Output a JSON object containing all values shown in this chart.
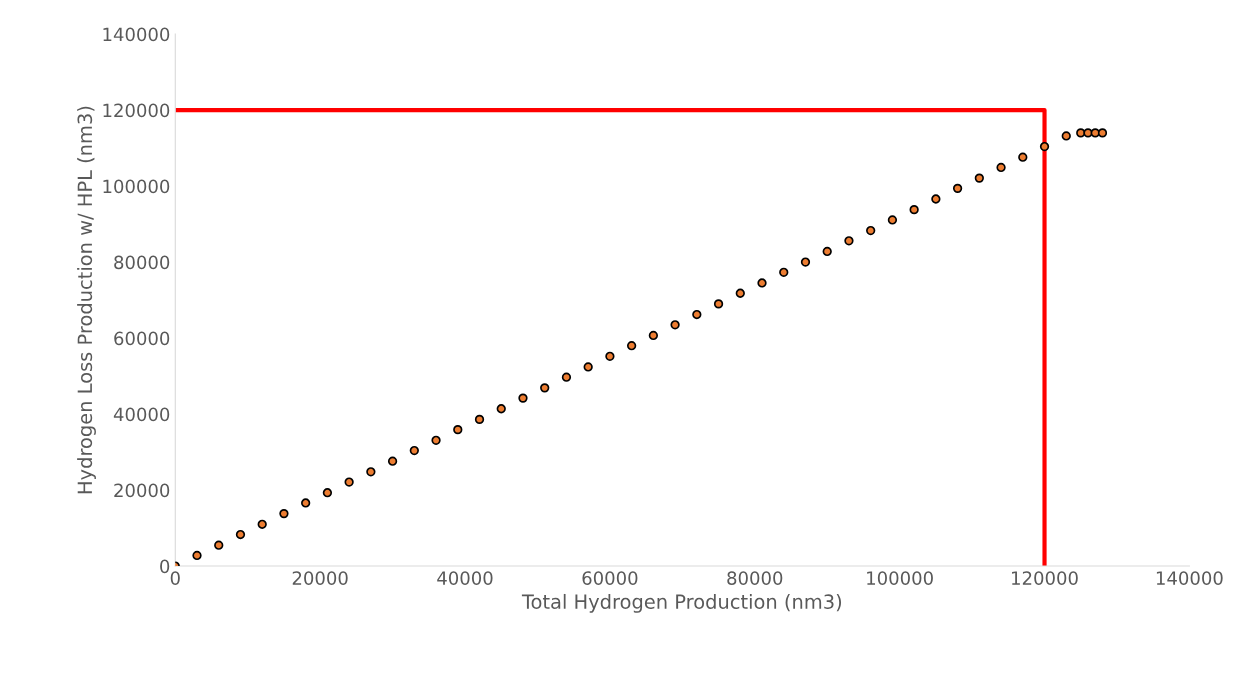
{
  "chart_data": {
    "type": "scatter",
    "xlabel": "Total Hydrogen Production (nm3)",
    "ylabel": "Hydrogen Loss Production w/ HPL (nm3)",
    "xlim": [
      0,
      140000
    ],
    "ylim": [
      0,
      140000
    ],
    "xticks": [
      0,
      20000,
      40000,
      60000,
      80000,
      100000,
      120000,
      140000
    ],
    "yticks": [
      0,
      20000,
      40000,
      60000,
      80000,
      100000,
      120000,
      140000
    ],
    "grid": false,
    "series": [
      {
        "marker": "circle",
        "color": "#ed7d31",
        "x": [
          0,
          3000,
          6000,
          9000,
          12000,
          15000,
          18000,
          21000,
          24000,
          27000,
          30000,
          33000,
          36000,
          39000,
          42000,
          45000,
          48000,
          51000,
          54000,
          57000,
          60000,
          63000,
          66000,
          69000,
          72000,
          75000,
          78000,
          81000,
          84000,
          87000,
          90000,
          93000,
          96000,
          99000,
          102000,
          105000,
          108000,
          111000,
          114000,
          117000,
          120000,
          123000,
          125000,
          126000,
          127000,
          128000
        ],
        "values": [
          0,
          2800,
          5500,
          8300,
          11000,
          13800,
          16600,
          19300,
          22100,
          24800,
          27600,
          30400,
          33100,
          35900,
          38600,
          41400,
          44200,
          46900,
          49700,
          52400,
          55200,
          58000,
          60700,
          63500,
          66200,
          69000,
          71800,
          74500,
          77300,
          80000,
          82800,
          85600,
          88300,
          91100,
          93800,
          96600,
          99400,
          102100,
          104900,
          107600,
          110400,
          113200,
          114000,
          114000,
          114000,
          114000
        ]
      },
      {
        "type": "line",
        "color": "#ff0000",
        "marker": "none",
        "x": [
          0,
          120000,
          120000
        ],
        "values": [
          120000,
          120000,
          0
        ]
      }
    ]
  }
}
